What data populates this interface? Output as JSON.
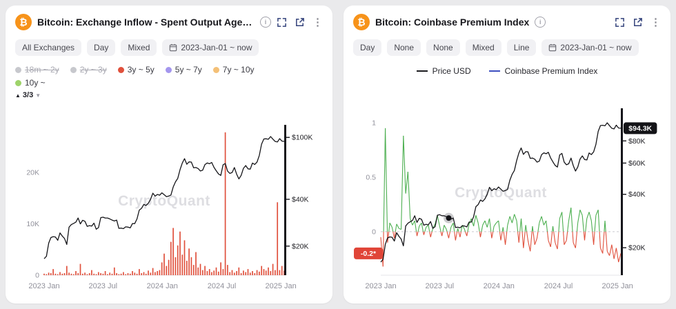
{
  "watermark": "CryptoQuant",
  "icons": {
    "bitcoin_glyph": "₿",
    "menu_glyph": "⋮",
    "info_glyph": "i"
  },
  "cards": [
    {
      "title": "Bitcoin: Exchange Inflow - Spent Output Age Ban…",
      "chips": [
        "All Exchanges",
        "Day",
        "Mixed"
      ],
      "date_chip": "2023-Jan-01 ~ now",
      "legend": {
        "items": [
          {
            "label": "18m ~ 2y",
            "color": "#c7c8cd",
            "disabled": true
          },
          {
            "label": "2y ~ 3y",
            "color": "#c7c8cd",
            "disabled": true
          },
          {
            "label": "3y ~ 5y",
            "color": "#e0503c",
            "disabled": false
          },
          {
            "label": "5y ~ 7y",
            "color": "#a496ee",
            "disabled": false
          },
          {
            "label": "7y ~ 10y",
            "color": "#f4c077",
            "disabled": false
          },
          {
            "label": "10y ~",
            "color": "#9ed36a",
            "disabled": false
          }
        ],
        "pager_up": "▲",
        "pagination": "3/3",
        "pager_down": "▼"
      }
    },
    {
      "title": "Bitcoin: Coinbase Premium Index",
      "chips": [
        "Day",
        "None",
        "None",
        "Mixed",
        "Line"
      ],
      "date_chip": "2023-Jan-01 ~ now",
      "legend_lines": [
        {
          "label": "Price USD",
          "color": "#1a1a1e"
        },
        {
          "label": "Coinbase Premium Index",
          "color": "#3c4ec0"
        }
      ]
    }
  ],
  "chart_data": [
    {
      "type": "mixed",
      "title": "Bitcoin: Exchange Inflow - Spent Output Age Bands",
      "x_ticks": [
        {
          "pos": 0.0,
          "label": "2023 Jan"
        },
        {
          "pos": 0.245,
          "label": "2023 Jul"
        },
        {
          "pos": 0.492,
          "label": "2024 Jan"
        },
        {
          "pos": 0.74,
          "label": "2024 Jul"
        },
        {
          "pos": 0.986,
          "label": "2025 Jan"
        }
      ],
      "axes": {
        "left": {
          "scale": "linear",
          "range": [
            0,
            29
          ],
          "ticks": [
            {
              "value": 20,
              "label": "20K"
            },
            {
              "value": 10,
              "label": "10K"
            },
            {
              "value": 0,
              "label": "0"
            }
          ]
        },
        "right": {
          "scale": "log",
          "range": [
            13,
            118
          ],
          "ticks": [
            {
              "value": 100,
              "label": "$100K"
            },
            {
              "value": 40,
              "label": "$40K"
            },
            {
              "value": 20,
              "label": "$20K"
            }
          ]
        }
      },
      "series": [
        {
          "name": "Exchange Inflow - Spent Output Age Band 3y ~ 5y (K BTC)",
          "type": "bar",
          "axis": "left",
          "color": "#e0503c",
          "values": [
            0.3,
            0.2,
            0.5,
            0.4,
            1.2,
            0.3,
            0.2,
            0.6,
            0.3,
            0.4,
            1.8,
            0.5,
            0.3,
            0.2,
            0.8,
            0.4,
            2.2,
            0.3,
            0.5,
            0.2,
            0.4,
            1.0,
            0.3,
            0.2,
            0.6,
            0.4,
            0.3,
            0.8,
            0.2,
            0.5,
            0.3,
            1.5,
            0.4,
            0.2,
            0.3,
            0.6,
            0.2,
            0.4,
            0.3,
            0.8,
            0.5,
            0.3,
            1.2,
            0.4,
            0.6,
            0.3,
            0.9,
            0.5,
            1.4,
            0.6,
            0.8,
            1.0,
            2.5,
            4.2,
            1.8,
            3.0,
            6.5,
            9.2,
            3.5,
            5.8,
            8.5,
            4.0,
            6.8,
            2.8,
            5.2,
            3.5,
            2.0,
            4.5,
            1.5,
            2.2,
            1.0,
            1.8,
            0.8,
            1.2,
            0.6,
            0.9,
            1.5,
            0.7,
            2.5,
            1.2,
            27.8,
            2.0,
            0.6,
            1.0,
            0.5,
            0.8,
            1.5,
            0.4,
            0.9,
            0.6,
            1.2,
            0.5,
            0.8,
            0.4,
            1.0,
            0.7,
            1.8,
            1.2,
            0.9,
            1.5,
            0.8,
            2.2,
            1.0,
            14.2,
            1.0,
            1.8,
            0.9
          ]
        },
        {
          "name": "Price USD ($K)",
          "type": "line",
          "axis": "right",
          "color": "#141418",
          "values": [
            16.6,
            17.2,
            20.9,
            22.7,
            23.0,
            22.9,
            21.8,
            24.3,
            23.2,
            22.4,
            20.5,
            26.5,
            27.5,
            28.0,
            28.5,
            30.3,
            27.8,
            29.3,
            28.9,
            26.8,
            27.1,
            26.9,
            28.1,
            25.7,
            26.3,
            30.5,
            30.7,
            30.3,
            30.3,
            29.9,
            29.4,
            29.0,
            29.4,
            26.0,
            26.1,
            25.9,
            26.6,
            26.5,
            26.2,
            27.9,
            27.9,
            29.9,
            34.1,
            35.0,
            37.1,
            36.5,
            37.7,
            40.0,
            43.8,
            41.9,
            43.0,
            42.5,
            44.0,
            42.8,
            41.6,
            42.0,
            42.6,
            48.0,
            51.8,
            54.5,
            62.0,
            68.5,
            73.0,
            67.2,
            69.6,
            69.4,
            63.8,
            64.0,
            63.1,
            60.8,
            61.5,
            66.9,
            68.5,
            67.7,
            69.0,
            64.2,
            61.0,
            58.2,
            57.0,
            66.7,
            68.0,
            60.7,
            58.7,
            59.5,
            64.0,
            58.0,
            54.1,
            57.0,
            63.2,
            65.9,
            62.8,
            62.5,
            68.4,
            67.0,
            69.4,
            76.5,
            90.5,
            97.7,
            98.0,
            97.3,
            101.2,
            97.5,
            94.2,
            93.5,
            98.2,
            94.6,
            94.3
          ]
        }
      ]
    },
    {
      "type": "mixed",
      "title": "Bitcoin: Coinbase Premium Index",
      "zero_line": true,
      "x_ticks": [
        {
          "pos": 0.0,
          "label": "2023 Jan"
        },
        {
          "pos": 0.245,
          "label": "2023 Jul"
        },
        {
          "pos": 0.492,
          "label": "2024 Jan"
        },
        {
          "pos": 0.74,
          "label": "2024 Jul"
        },
        {
          "pos": 0.986,
          "label": "2025 Jan"
        }
      ],
      "axes": {
        "left": {
          "scale": "linear",
          "range": [
            -0.4,
            1.12
          ],
          "ticks": [
            {
              "value": 1,
              "label": "1"
            },
            {
              "value": 0.5,
              "label": "0.5"
            },
            {
              "value": 0,
              "label": "0"
            }
          ]
        },
        "right": {
          "scale": "log",
          "range": [
            14,
            120
          ],
          "ticks": [
            {
              "value": 80,
              "label": "$80K"
            },
            {
              "value": 60,
              "label": "$60K"
            },
            {
              "value": 40,
              "label": "$40K"
            },
            {
              "value": 20,
              "label": "$20K"
            }
          ]
        }
      },
      "series": [
        {
          "name": "Coinbase Premium Index",
          "type": "signline",
          "axis": "left",
          "pos_color": "#4caf50",
          "neg_color": "#e0503c",
          "values": [
            -0.05,
            -0.32,
            0.95,
            -0.1,
            0.08,
            0.04,
            -0.06,
            0.07,
            0.03,
            0.02,
            0.88,
            0.35,
            0.55,
            0.12,
            0.06,
            0.1,
            -0.04,
            0.05,
            0.08,
            -0.03,
            0.04,
            0.06,
            -0.05,
            0.03,
            0.07,
            0.15,
            0.05,
            -0.04,
            0.06,
            0.02,
            -0.06,
            0.04,
            0.08,
            -0.08,
            0.03,
            -0.05,
            0.06,
            0.02,
            -0.04,
            0.07,
            0.12,
            0.05,
            0.15,
            0.08,
            -0.05,
            0.06,
            0.1,
            0.04,
            0.12,
            -0.06,
            0.05,
            0.08,
            0.1,
            -0.08,
            0.04,
            -0.12,
            0.06,
            0.14,
            0.08,
            0.16,
            0.1,
            -0.1,
            0.12,
            -0.15,
            0.06,
            -0.08,
            -0.18,
            0.05,
            -0.12,
            -0.06,
            0.08,
            0.14,
            0.06,
            0.1,
            -0.08,
            -0.14,
            0.05,
            -0.1,
            -0.16,
            0.12,
            0.18,
            -0.12,
            -0.08,
            0.1,
            0.22,
            -0.1,
            -0.15,
            0.08,
            0.2,
            0.15,
            -0.08,
            0.12,
            0.18,
            0.1,
            -0.12,
            0.15,
            0.2,
            -0.15,
            -0.2,
            0.1,
            -0.18,
            -0.22,
            -0.12,
            -0.25,
            -0.15,
            -0.28,
            -0.2
          ]
        },
        {
          "name": "Price USD ($K)",
          "type": "line",
          "axis": "right",
          "color": "#141418",
          "values": [
            16.6,
            17.2,
            20.9,
            22.7,
            23.0,
            22.9,
            21.8,
            24.3,
            23.2,
            22.4,
            20.5,
            26.5,
            27.5,
            28.0,
            28.5,
            30.3,
            27.8,
            29.3,
            28.9,
            26.8,
            27.1,
            26.9,
            28.1,
            25.7,
            26.3,
            30.5,
            30.7,
            30.3,
            30.3,
            29.9,
            29.4,
            29.0,
            29.4,
            26.0,
            26.1,
            25.9,
            26.6,
            26.5,
            26.2,
            27.9,
            27.9,
            29.9,
            34.1,
            35.0,
            37.1,
            36.5,
            37.7,
            40.0,
            43.8,
            41.9,
            43.0,
            42.5,
            44.0,
            42.8,
            41.6,
            42.0,
            42.6,
            48.0,
            51.8,
            54.5,
            62.0,
            68.5,
            73.0,
            67.2,
            69.6,
            69.4,
            63.8,
            64.0,
            63.1,
            60.8,
            61.5,
            66.9,
            68.5,
            67.7,
            69.0,
            64.2,
            61.0,
            58.2,
            57.0,
            66.7,
            68.0,
            60.7,
            58.7,
            59.5,
            64.0,
            58.0,
            54.1,
            57.0,
            63.2,
            65.9,
            62.8,
            62.5,
            68.4,
            67.0,
            69.4,
            76.5,
            90.5,
            97.7,
            98.0,
            97.3,
            101.2,
            97.5,
            94.2,
            93.5,
            98.2,
            94.6,
            94.3
          ]
        }
      ],
      "badges": [
        {
          "label": "$94.3K",
          "axis": "right",
          "value": 94.3,
          "side": "right",
          "bg": "#141418"
        },
        {
          "label": "-0.2*",
          "axis": "left",
          "value": -0.2,
          "side": "left",
          "bg": "#e04538"
        }
      ],
      "marker": {
        "series": 1,
        "index": 30
      }
    }
  ]
}
